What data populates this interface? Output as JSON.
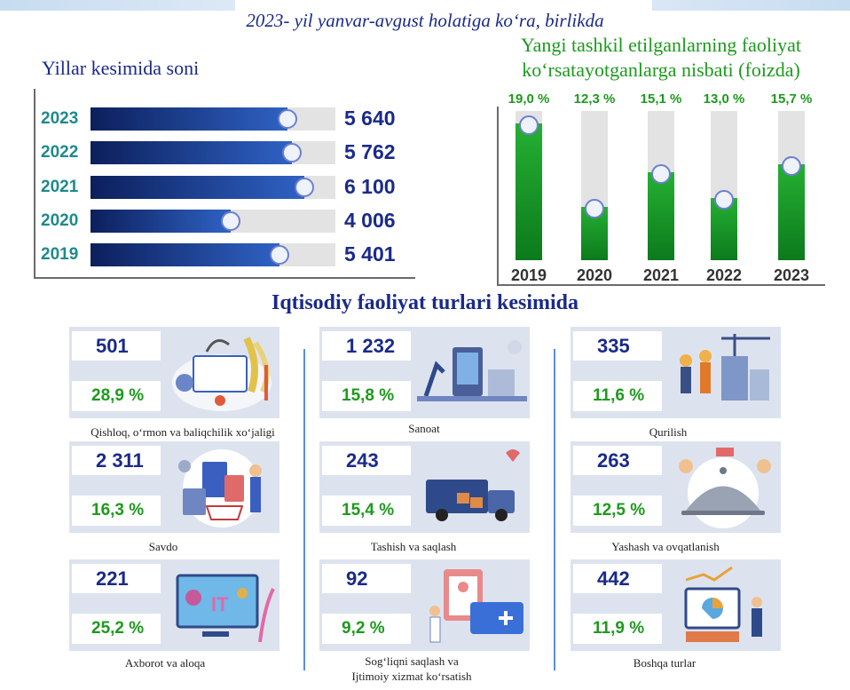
{
  "header": {
    "title": "2023- yil yanvar-avgust holatiga ko‘ra, birlikda"
  },
  "colors": {
    "navy": "#1a2a8a",
    "green": "#1d9a1d",
    "bar_blue": "#1f3e8f",
    "bar_green": "#1a9a2a"
  },
  "chart_data": [
    {
      "type": "bar",
      "orientation": "horizontal",
      "title": "Yillar kesimida soni",
      "categories": [
        "2023",
        "2022",
        "2021",
        "2020",
        "2019"
      ],
      "values": [
        5640,
        5762,
        6100,
        4006,
        5401
      ],
      "value_labels": [
        "5 640",
        "5 762",
        "6 100",
        "4 006",
        "5 401"
      ],
      "xlim": [
        0,
        7000
      ]
    },
    {
      "type": "bar",
      "orientation": "vertical",
      "title": "Yangi tashkil etilganlarning faoliyat ko‘rsatayotganlarga nisbati (foizda)",
      "categories": [
        "2019",
        "2020",
        "2021",
        "2022",
        "2023"
      ],
      "values": [
        19.0,
        12.3,
        15.1,
        13.0,
        15.7
      ],
      "value_labels": [
        "19,0 %",
        "12,3 %",
        "15,1 %",
        "13,0 %",
        "15,7 %"
      ],
      "ylim": [
        8,
        20
      ]
    }
  ],
  "sectors": {
    "title": "Iqtisodiy faoliyat turlari kesimida",
    "items": [
      {
        "count": "501",
        "percent": "28,9 %",
        "label": "Qishloq, o‘rmon va baliqchilik xo‘jaligi",
        "icon": "farming-icon"
      },
      {
        "count": "1 232",
        "percent": "15,8 %",
        "label": "Sanoat",
        "icon": "factory-icon"
      },
      {
        "count": "335",
        "percent": "11,6 %",
        "label": "Qurilish",
        "icon": "construction-icon"
      },
      {
        "count": "2 311",
        "percent": "16,3 %",
        "label": "Savdo",
        "icon": "shopping-icon"
      },
      {
        "count": "243",
        "percent": "15,4 %",
        "label": "Tashish va saqlash",
        "icon": "truck-icon"
      },
      {
        "count": "263",
        "percent": "12,5 %",
        "label": "Yashash va ovqatlanish",
        "icon": "food-service-icon"
      },
      {
        "count": "221",
        "percent": "25,2 %",
        "label": "Axborot va aloqa",
        "icon": "it-icon"
      },
      {
        "count": "92",
        "percent": "9,2 %",
        "label": "Sog‘liqni saqlash va",
        "label2": "Ijtimoiy xizmat ko‘rsatish",
        "icon": "health-icon"
      },
      {
        "count": "442",
        "percent": "11,9 %",
        "label": "Boshqa turlar",
        "icon": "analytics-icon"
      }
    ]
  }
}
